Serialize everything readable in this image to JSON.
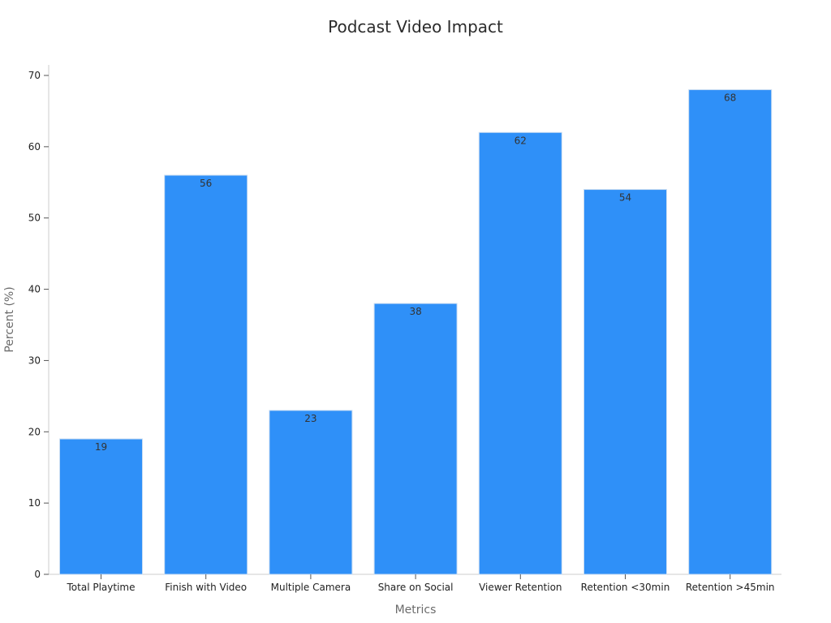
{
  "chart_data": {
    "type": "bar",
    "title": "Podcast Video Impact",
    "xlabel": "Metrics",
    "ylabel": "Percent (%)",
    "categories": [
      "Total Playtime",
      "Finish with Video",
      "Multiple Camera",
      "Share on Social",
      "Viewer Retention",
      "Retention <30min",
      "Retention >45min"
    ],
    "values": [
      19,
      56,
      23,
      38,
      62,
      54,
      68
    ],
    "ylim": [
      0,
      70
    ],
    "yticks": [
      0,
      10,
      20,
      30,
      40,
      50,
      60,
      70
    ],
    "grid": false,
    "legend": "none",
    "bar_color": "#2f90f8",
    "bar_edge_color": "#c9ddf2",
    "axis_color": "#cccccc",
    "show_data_labels": true
  }
}
